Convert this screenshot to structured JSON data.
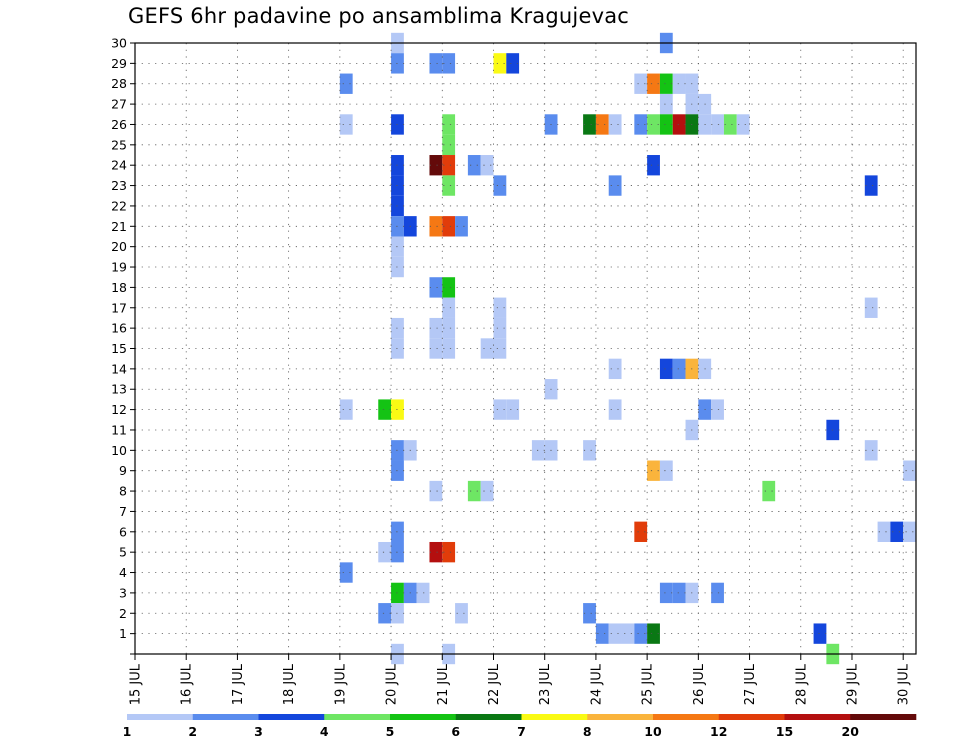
{
  "chart_data": {
    "type": "heatmap",
    "title": "GEFS 6hr padavine po ansamblima Kragujevac",
    "xlabel": "",
    "ylabel": "",
    "x_ticks": [
      "15 JUL",
      "16 JUL",
      "17 JUL",
      "18 JUL",
      "19 JUL",
      "20 JUL",
      "21 JUL",
      "22 JUL",
      "23 JUL",
      "24 JUL",
      "25 JUL",
      "26 JUL",
      "27 JUL",
      "28 JUL",
      "29 JUL",
      "30 JUL"
    ],
    "y_ticks": [
      "1",
      "2",
      "3",
      "4",
      "5",
      "6",
      "7",
      "8",
      "9",
      "10",
      "11",
      "12",
      "13",
      "14",
      "15",
      "16",
      "17",
      "18",
      "19",
      "20",
      "21",
      "22",
      "23",
      "24",
      "25",
      "26",
      "27",
      "28",
      "29",
      "30"
    ],
    "xlim": [
      0,
      61
    ],
    "ylim": [
      0,
      30
    ],
    "time_step_hours": 6,
    "grid": true,
    "legend_position": "bottom",
    "colorbar": {
      "labels": [
        "1",
        "2",
        "3",
        "4",
        "5",
        "6",
        "7",
        "8",
        "10",
        "12",
        "15",
        "20"
      ],
      "colors": [
        "#b4c8f6",
        "#5a8cee",
        "#1446dc",
        "#6ee664",
        "#14c314",
        "#0a7814",
        "#fafa14",
        "#fab43c",
        "#f57814",
        "#e13c0a",
        "#b40f0f",
        "#640a0a"
      ]
    },
    "cells": [
      [
        20,
        30,
        1
      ],
      [
        41,
        30,
        2
      ],
      [
        20,
        29,
        2
      ],
      [
        23,
        29,
        2
      ],
      [
        24,
        29,
        2
      ],
      [
        28,
        29,
        7
      ],
      [
        29,
        29,
        3
      ],
      [
        16,
        28,
        2
      ],
      [
        39,
        28,
        1
      ],
      [
        40,
        28,
        10
      ],
      [
        41,
        28,
        5
      ],
      [
        42,
        28,
        1
      ],
      [
        43,
        28,
        1
      ],
      [
        41,
        27,
        1
      ],
      [
        43,
        27,
        1
      ],
      [
        44,
        27,
        1
      ],
      [
        16,
        26,
        1
      ],
      [
        20,
        26,
        3
      ],
      [
        24,
        26,
        4
      ],
      [
        32,
        26,
        2
      ],
      [
        35,
        26,
        6
      ],
      [
        36,
        26,
        10
      ],
      [
        37,
        26,
        1
      ],
      [
        39,
        26,
        2
      ],
      [
        40,
        26,
        4
      ],
      [
        41,
        26,
        5
      ],
      [
        42,
        26,
        15
      ],
      [
        43,
        26,
        6
      ],
      [
        44,
        26,
        1
      ],
      [
        45,
        26,
        1
      ],
      [
        46,
        26,
        4
      ],
      [
        47,
        26,
        1
      ],
      [
        24,
        25,
        4
      ],
      [
        20,
        24,
        3
      ],
      [
        23,
        24,
        20
      ],
      [
        24,
        24,
        12
      ],
      [
        26,
        24,
        2
      ],
      [
        27,
        24,
        1
      ],
      [
        40,
        24,
        3
      ],
      [
        20,
        23,
        3
      ],
      [
        24,
        23,
        4
      ],
      [
        28,
        23,
        2
      ],
      [
        37,
        23,
        2
      ],
      [
        57,
        23,
        3
      ],
      [
        20,
        22,
        3
      ],
      [
        20,
        21,
        2
      ],
      [
        21,
        21,
        3
      ],
      [
        23,
        21,
        10
      ],
      [
        24,
        21,
        12
      ],
      [
        25,
        21,
        2
      ],
      [
        20,
        20,
        1
      ],
      [
        20,
        19,
        1
      ],
      [
        23,
        18,
        2
      ],
      [
        24,
        18,
        5
      ],
      [
        24,
        17,
        1
      ],
      [
        28,
        17,
        1
      ],
      [
        57,
        17,
        1
      ],
      [
        20,
        16,
        1
      ],
      [
        23,
        16,
        1
      ],
      [
        24,
        16,
        1
      ],
      [
        28,
        16,
        1
      ],
      [
        20,
        15,
        1
      ],
      [
        23,
        15,
        1
      ],
      [
        24,
        15,
        1
      ],
      [
        27,
        15,
        1
      ],
      [
        28,
        15,
        1
      ],
      [
        37,
        14,
        1
      ],
      [
        41,
        14,
        3
      ],
      [
        42,
        14,
        2
      ],
      [
        43,
        14,
        8
      ],
      [
        44,
        14,
        1
      ],
      [
        32,
        13,
        1
      ],
      [
        16,
        12,
        1
      ],
      [
        19,
        12,
        5
      ],
      [
        20,
        12,
        7
      ],
      [
        28,
        12,
        1
      ],
      [
        29,
        12,
        1
      ],
      [
        37,
        12,
        1
      ],
      [
        44,
        12,
        2
      ],
      [
        45,
        12,
        1
      ],
      [
        43,
        11,
        1
      ],
      [
        54,
        11,
        3
      ],
      [
        20,
        10,
        2
      ],
      [
        21,
        10,
        1
      ],
      [
        31,
        10,
        1
      ],
      [
        32,
        10,
        1
      ],
      [
        35,
        10,
        1
      ],
      [
        57,
        10,
        1
      ],
      [
        20,
        9,
        2
      ],
      [
        40,
        9,
        8
      ],
      [
        41,
        9,
        1
      ],
      [
        60,
        9,
        1
      ],
      [
        23,
        8,
        1
      ],
      [
        26,
        8,
        4
      ],
      [
        27,
        8,
        1
      ],
      [
        49,
        8,
        4
      ],
      [
        20,
        6,
        2
      ],
      [
        39,
        6,
        12
      ],
      [
        58,
        6,
        1
      ],
      [
        59,
        6,
        3
      ],
      [
        60,
        6,
        1
      ],
      [
        19,
        5,
        1
      ],
      [
        20,
        5,
        2
      ],
      [
        23,
        5,
        15
      ],
      [
        24,
        5,
        12
      ],
      [
        16,
        4,
        2
      ],
      [
        20,
        3,
        5
      ],
      [
        21,
        3,
        2
      ],
      [
        22,
        3,
        1
      ],
      [
        41,
        3,
        2
      ],
      [
        42,
        3,
        2
      ],
      [
        43,
        3,
        1
      ],
      [
        45,
        3,
        2
      ],
      [
        19,
        2,
        2
      ],
      [
        20,
        2,
        1
      ],
      [
        25,
        2,
        1
      ],
      [
        35,
        2,
        2
      ],
      [
        36,
        1,
        2
      ],
      [
        37,
        1,
        1
      ],
      [
        38,
        1,
        1
      ],
      [
        39,
        1,
        2
      ],
      [
        40,
        1,
        6
      ],
      [
        53,
        1,
        3
      ],
      [
        20,
        0,
        1
      ],
      [
        24,
        0,
        1
      ],
      [
        54,
        0,
        4
      ]
    ]
  }
}
